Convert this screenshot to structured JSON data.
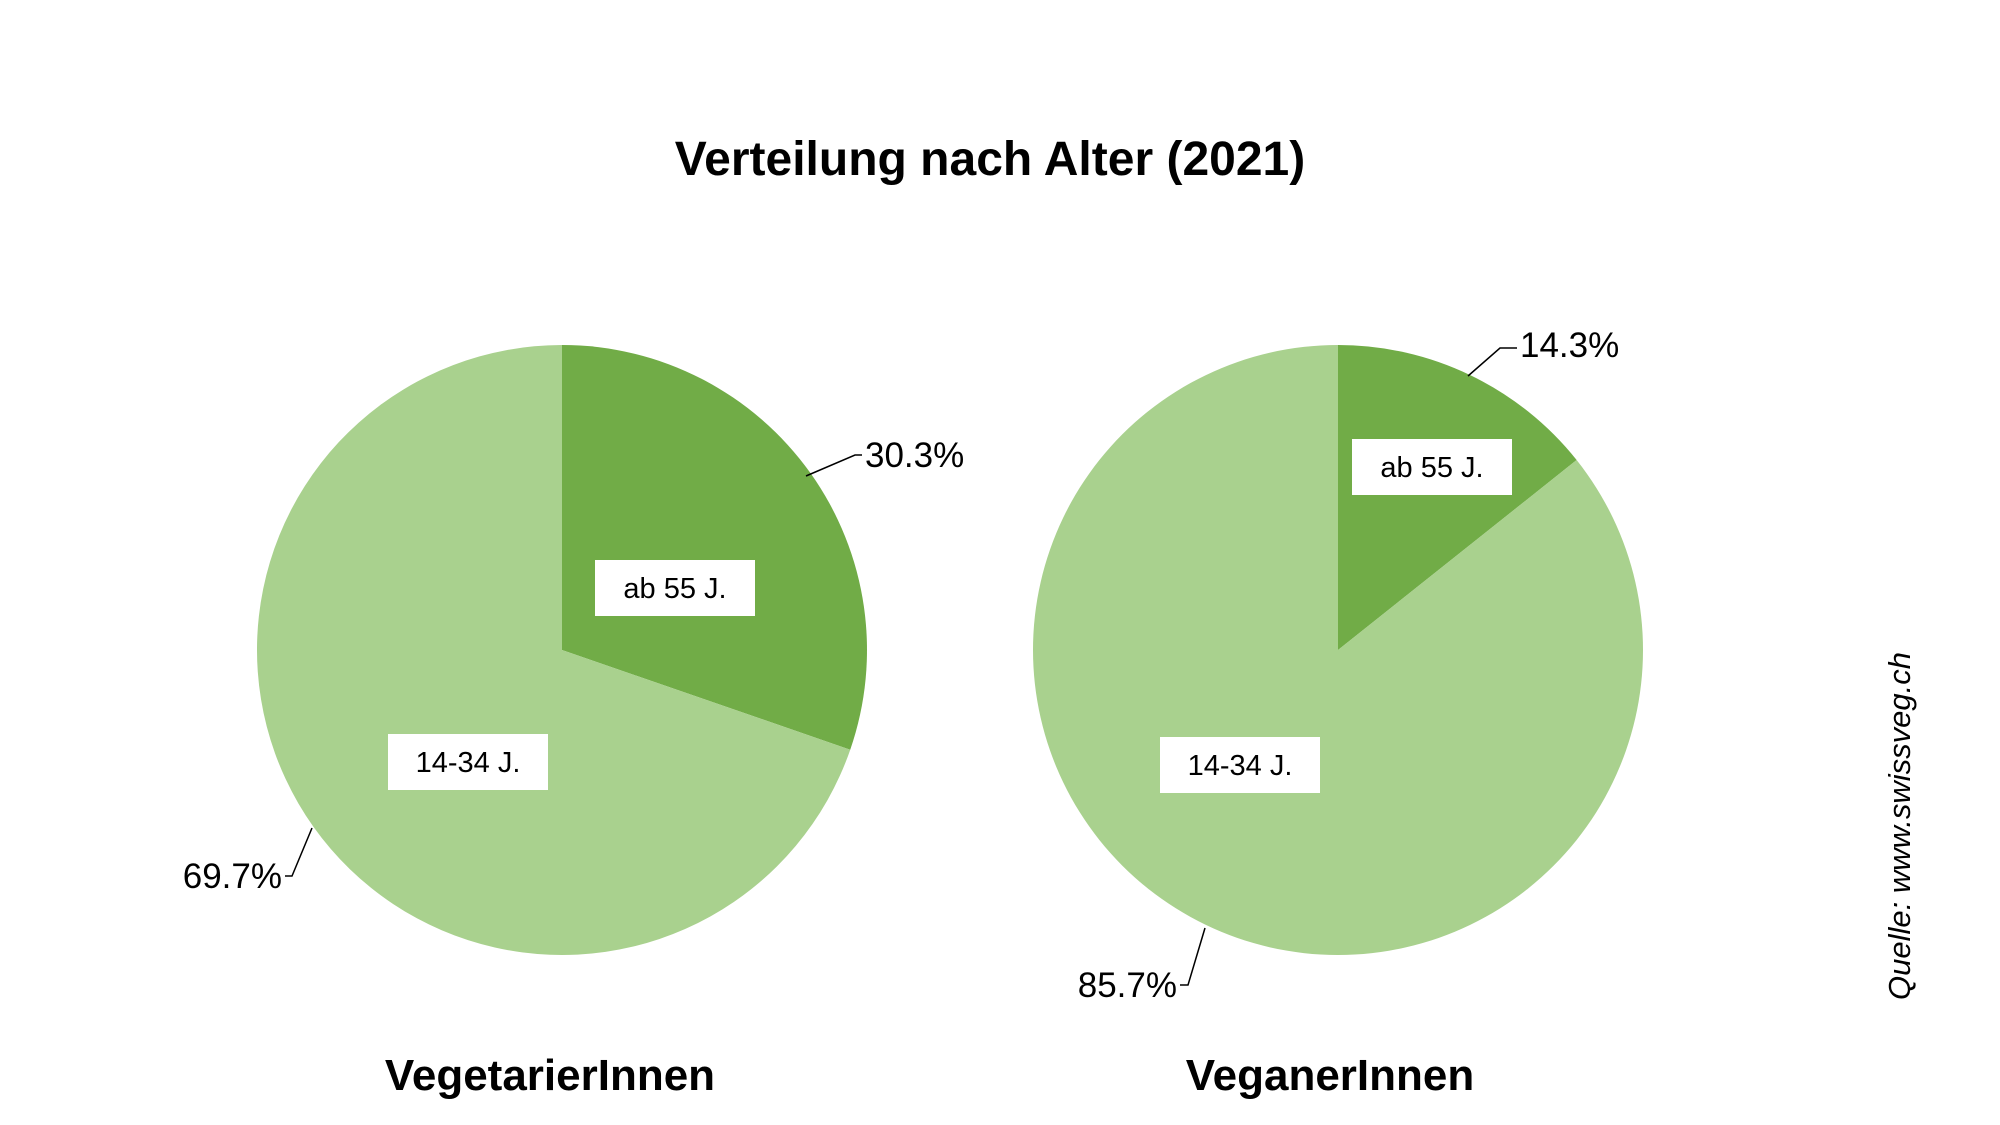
{
  "title": "Verteilung nach Alter (2021)",
  "source": "Quelle: www.swissveg.ch",
  "colors": {
    "dark_green": "#71ac47",
    "light_green": "#a9d18e",
    "label_box": "#ffffff",
    "text": "#000000"
  },
  "chart_data": [
    {
      "type": "pie",
      "title": "VegetarierInnen",
      "start_angle_deg": 0,
      "direction": "clockwise",
      "slices": [
        {
          "label": "ab 55 J.",
          "value": 30.3,
          "value_label": "30.3%",
          "color": "#71ac47"
        },
        {
          "label": "14-34 J.",
          "value": 69.7,
          "value_label": "69.7%",
          "color": "#a9d18e"
        }
      ]
    },
    {
      "type": "pie",
      "title": "VeganerInnen",
      "start_angle_deg": 0,
      "direction": "clockwise",
      "slices": [
        {
          "label": "ab 55 J.",
          "value": 14.3,
          "value_label": "14.3%",
          "color": "#71ac47"
        },
        {
          "label": "14-34 J.",
          "value": 85.7,
          "value_label": "85.7%",
          "color": "#a9d18e"
        }
      ]
    }
  ]
}
